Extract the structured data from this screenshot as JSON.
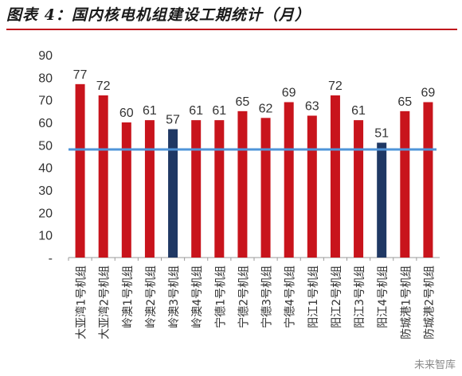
{
  "header": {
    "title": "图表 4：国内核电机组建设工期统计（月）"
  },
  "watermark": "未来智库",
  "chart_data": {
    "type": "bar",
    "title": "国内核电机组建设工期统计（月）",
    "categories": [
      "大亚湾1号机组",
      "大亚湾2号机组",
      "岭澳1号机组",
      "岭澳2号机组",
      "岭澳3号机组",
      "岭澳4号机组",
      "宁德1号机组",
      "宁德2号机组",
      "宁德3号机组",
      "宁德4号机组",
      "阳江1号机组",
      "阳江2号机组",
      "阳江3号机组",
      "阳江4号机组",
      "防城港1号机组",
      "防城港2号机组"
    ],
    "values": [
      77,
      72,
      60,
      61,
      57,
      61,
      61,
      65,
      62,
      69,
      63,
      72,
      61,
      51,
      65,
      69
    ],
    "highlight": [
      "岭澳3号机组",
      "阳江4号机组"
    ],
    "reference_line": 48,
    "ylim": [
      0,
      90
    ],
    "yticks": [
      "-",
      "10",
      "20",
      "30",
      "40",
      "50",
      "60",
      "70",
      "80",
      "90"
    ],
    "colors": {
      "bar": "#c8141c",
      "highlight": "#1f3864",
      "reference": "#4f94d9"
    },
    "data_labels": true,
    "grid": false
  }
}
